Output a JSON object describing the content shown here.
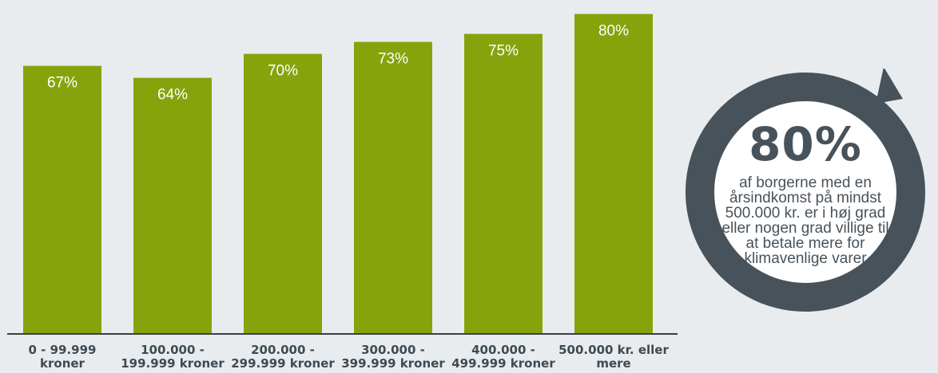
{
  "chart_data": {
    "type": "bar",
    "categories": [
      "0 - 99.999 kroner",
      "100.000 - 199.999 kroner",
      "200.000 - 299.999 kroner",
      "300.000 - 399.999 kroner",
      "400.000 - 499.999 kroner",
      "500.000 kr. eller mere"
    ],
    "values": [
      67,
      64,
      70,
      73,
      75,
      80
    ],
    "value_labels": [
      "67%",
      "64%",
      "70%",
      "73%",
      "75%",
      "80%"
    ],
    "ylim": [
      0,
      83.5
    ],
    "grid": false,
    "colors": {
      "bar": "#86a30c",
      "label": "#ffffff",
      "axis": "#3a3f44"
    }
  },
  "callout": {
    "value": "80%",
    "text": "af borgerne med en årsindkomst på mindst 500.000 kr. er i høj grad eller nogen grad villige til at betale mere for klimavenlige varer",
    "colors": {
      "ring": "#48525a",
      "inner": "#ffffff"
    }
  }
}
